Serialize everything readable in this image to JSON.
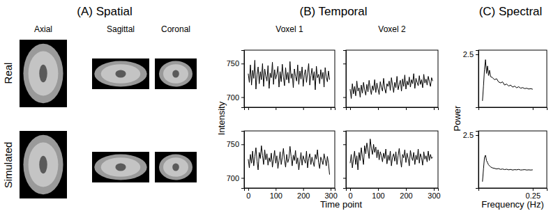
{
  "figure": {
    "panels": [
      "(A) Spatial",
      "(B) Temporal",
      "(C) Spectral"
    ],
    "rows": [
      "Real",
      "Simulated"
    ],
    "views": [
      "Axial",
      "Sagittal",
      "Coronal"
    ],
    "voxels": [
      "Voxel 1",
      "Voxel 2"
    ],
    "time_ylabel": "Intensity",
    "time_xlabel": "Time point",
    "spectral_ylabel": "Power",
    "spectral_xlabel": "Frequency (Hz)"
  },
  "chart_data": [
    {
      "type": "line",
      "color": "#000000",
      "xlim": [
        -15,
        315
      ],
      "ylim": [
        685,
        770
      ],
      "xticks": [
        0,
        100,
        200,
        300
      ],
      "yticks": [
        700,
        750
      ],
      "tick_labels": "y",
      "x": [
        0,
        4,
        8,
        12,
        16,
        20,
        24,
        28,
        32,
        36,
        40,
        44,
        48,
        52,
        56,
        60,
        64,
        68,
        72,
        76,
        80,
        84,
        88,
        92,
        96,
        100,
        104,
        108,
        112,
        116,
        120,
        124,
        128,
        132,
        136,
        140,
        144,
        148,
        152,
        156,
        160,
        164,
        168,
        172,
        176,
        180,
        184,
        188,
        192,
        196,
        200,
        204,
        208,
        212,
        216,
        220,
        224,
        228,
        232,
        236,
        240,
        244,
        248,
        252,
        256,
        260,
        264,
        268,
        272,
        276,
        280,
        284,
        288,
        292,
        296
      ],
      "values": [
        735,
        722,
        748,
        718,
        740,
        728,
        755,
        712,
        733,
        745,
        720,
        738,
        726,
        750,
        716,
        742,
        731,
        724,
        747,
        713,
        736,
        729,
        752,
        719,
        741,
        727,
        734,
        746,
        715,
        738,
        723,
        749,
        730,
        717,
        744,
        726,
        737,
        721,
        753,
        728,
        735,
        714,
        742,
        731,
        724,
        748,
        719,
        739,
        727,
        745,
        716,
        733,
        741,
        722,
        736,
        750,
        718,
        732,
        743,
        725,
        738,
        711,
        746,
        729,
        734,
        720,
        741,
        727,
        737,
        715,
        744,
        730,
        723,
        739,
        726
      ]
    },
    {
      "type": "line",
      "color": "#000000",
      "xlim": [
        -15,
        315
      ],
      "ylim": [
        685,
        770
      ],
      "xticks": [
        0,
        100,
        200,
        300
      ],
      "yticks": [
        700,
        750
      ],
      "tick_labels": false,
      "x": [
        0,
        4,
        8,
        12,
        16,
        20,
        24,
        28,
        32,
        36,
        40,
        44,
        48,
        52,
        56,
        60,
        64,
        68,
        72,
        76,
        80,
        84,
        88,
        92,
        96,
        100,
        104,
        108,
        112,
        116,
        120,
        124,
        128,
        132,
        136,
        140,
        144,
        148,
        152,
        156,
        160,
        164,
        168,
        172,
        176,
        180,
        184,
        188,
        192,
        196,
        200,
        204,
        208,
        212,
        216,
        220,
        224,
        228,
        232,
        236,
        240,
        244,
        248,
        252,
        256,
        260,
        264,
        268,
        272,
        276,
        280,
        284,
        288,
        292,
        296
      ],
      "values": [
        712,
        698,
        720,
        705,
        716,
        702,
        724,
        709,
        714,
        700,
        718,
        706,
        722,
        711,
        703,
        719,
        708,
        725,
        713,
        704,
        717,
        710,
        726,
        707,
        721,
        712,
        704,
        723,
        715,
        709,
        728,
        713,
        706,
        720,
        716,
        724,
        710,
        729,
        718,
        707,
        722,
        714,
        731,
        711,
        719,
        725,
        709,
        727,
        716,
        733,
        712,
        724,
        718,
        730,
        715,
        726,
        720,
        735,
        713,
        728,
        722,
        717,
        732,
        719,
        726,
        714,
        734,
        721,
        727,
        718,
        731,
        723,
        716,
        729,
        724
      ]
    },
    {
      "type": "line",
      "color": "#000000",
      "xlim": [
        -0.02,
        0.32
      ],
      "ylim": [
        0,
        2.7
      ],
      "xticks": [
        0.25
      ],
      "yticks": [
        2.5
      ],
      "tick_labels": "y",
      "x": [
        0,
        0.005,
        0.01,
        0.015,
        0.02,
        0.025,
        0.03,
        0.035,
        0.04,
        0.05,
        0.06,
        0.07,
        0.08,
        0.09,
        0.1,
        0.11,
        0.12,
        0.13,
        0.14,
        0.15,
        0.16,
        0.17,
        0.18,
        0.19,
        0.2,
        0.21,
        0.22,
        0.23,
        0.24,
        0.25
      ],
      "values": [
        0.3,
        1.0,
        1.8,
        2.25,
        1.6,
        1.95,
        1.5,
        1.75,
        1.45,
        1.4,
        1.3,
        1.35,
        1.2,
        1.15,
        1.2,
        1.05,
        1.1,
        1.0,
        1.05,
        0.95,
        1.0,
        0.92,
        0.97,
        0.9,
        0.93,
        0.88,
        0.9,
        0.86,
        0.88,
        0.85
      ]
    },
    {
      "type": "line",
      "color": "#000000",
      "xlim": [
        -15,
        315
      ],
      "ylim": [
        685,
        770
      ],
      "xticks": [
        0,
        100,
        200,
        300
      ],
      "yticks": [
        700,
        750
      ],
      "tick_labels": true,
      "x": [
        0,
        4,
        8,
        12,
        16,
        20,
        24,
        28,
        32,
        36,
        40,
        44,
        48,
        52,
        56,
        60,
        64,
        68,
        72,
        76,
        80,
        84,
        88,
        92,
        96,
        100,
        104,
        108,
        112,
        116,
        120,
        124,
        128,
        132,
        136,
        140,
        144,
        148,
        152,
        156,
        160,
        164,
        168,
        172,
        176,
        180,
        184,
        188,
        192,
        196,
        200,
        204,
        208,
        212,
        216,
        220,
        224,
        228,
        232,
        236,
        240,
        244,
        248,
        252,
        256,
        260,
        264,
        268,
        272,
        276,
        280,
        284,
        288,
        292,
        296
      ],
      "values": [
        728,
        715,
        735,
        722,
        740,
        718,
        732,
        745,
        725,
        712,
        738,
        729,
        748,
        733,
        720,
        742,
        727,
        736,
        719,
        730,
        724,
        737,
        716,
        728,
        741,
        722,
        733,
        714,
        726,
        739,
        720,
        731,
        744,
        727,
        716,
        735,
        723,
        729,
        747,
        732,
        718,
        734,
        726,
        741,
        721,
        730,
        712,
        725,
        738,
        719,
        733,
        727,
        722,
        740,
        715,
        729,
        736,
        720,
        731,
        724,
        717,
        735,
        728,
        742,
        723,
        714,
        731,
        726,
        720,
        736,
        727,
        718,
        732,
        722,
        705
      ]
    },
    {
      "type": "line",
      "color": "#000000",
      "xlim": [
        -15,
        315
      ],
      "ylim": [
        685,
        770
      ],
      "xticks": [
        0,
        100,
        200,
        300
      ],
      "yticks": [
        700,
        750
      ],
      "tick_labels": "x",
      "x": [
        0,
        4,
        8,
        12,
        16,
        20,
        24,
        28,
        32,
        36,
        40,
        44,
        48,
        52,
        56,
        60,
        64,
        68,
        72,
        76,
        80,
        84,
        88,
        92,
        96,
        100,
        104,
        108,
        112,
        116,
        120,
        124,
        128,
        132,
        136,
        140,
        144,
        148,
        152,
        156,
        160,
        164,
        168,
        172,
        176,
        180,
        184,
        188,
        192,
        196,
        200,
        204,
        208,
        212,
        216,
        220,
        224,
        228,
        232,
        236,
        240,
        244,
        248,
        252,
        256,
        260,
        264,
        268,
        272,
        276,
        280,
        284,
        288,
        292,
        296
      ],
      "values": [
        722,
        735,
        715,
        728,
        740,
        720,
        733,
        712,
        738,
        726,
        745,
        731,
        720,
        748,
        736,
        752,
        741,
        729,
        758,
        744,
        735,
        750,
        738,
        746,
        730,
        742,
        727,
        739,
        733,
        724,
        737,
        729,
        743,
        721,
        734,
        726,
        740,
        718,
        731,
        736,
        725,
        739,
        720,
        733,
        744,
        728,
        716,
        735,
        730,
        742,
        723,
        737,
        729,
        718,
        741,
        731,
        726,
        738,
        720,
        734,
        727,
        743,
        722,
        736,
        730,
        719,
        739,
        728,
        733,
        724,
        740,
        726,
        735,
        729,
        731
      ]
    },
    {
      "type": "line",
      "color": "#000000",
      "xlim": [
        -0.02,
        0.32
      ],
      "ylim": [
        0,
        2.7
      ],
      "xticks": [
        0.25
      ],
      "yticks": [
        2.5
      ],
      "tick_labels": true,
      "x": [
        0,
        0.005,
        0.01,
        0.015,
        0.02,
        0.025,
        0.03,
        0.035,
        0.04,
        0.05,
        0.06,
        0.07,
        0.08,
        0.09,
        0.1,
        0.11,
        0.12,
        0.13,
        0.14,
        0.15,
        0.16,
        0.17,
        0.18,
        0.19,
        0.2,
        0.21,
        0.22,
        0.23,
        0.24,
        0.25
      ],
      "values": [
        0.3,
        0.9,
        1.45,
        1.55,
        1.3,
        1.2,
        1.1,
        1.05,
        1.0,
        0.95,
        0.93,
        0.9,
        0.92,
        0.88,
        0.9,
        0.87,
        0.89,
        0.86,
        0.88,
        0.85,
        0.87,
        0.86,
        0.88,
        0.85,
        0.86,
        0.87,
        0.85,
        0.86,
        0.85,
        0.86
      ]
    }
  ]
}
